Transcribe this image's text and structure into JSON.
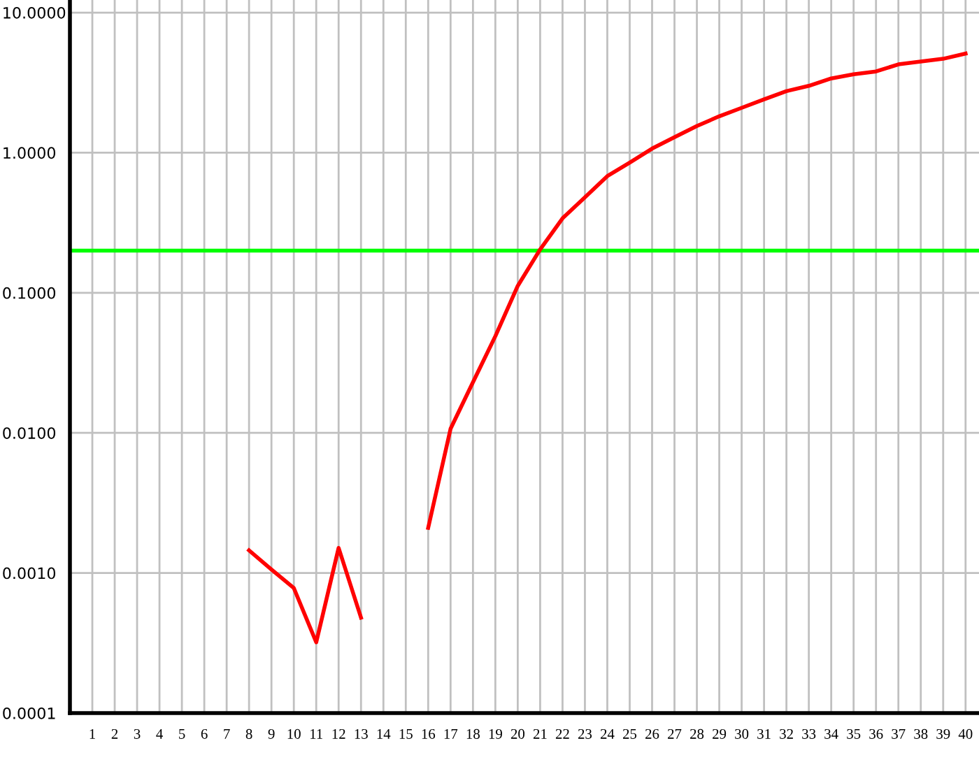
{
  "chart_data": {
    "type": "line",
    "log": "y",
    "x": [
      8,
      9,
      10,
      11,
      12,
      13,
      14,
      15,
      16,
      17,
      18,
      19,
      20,
      21,
      22,
      23,
      24,
      25,
      26,
      27,
      28,
      29,
      30,
      31,
      32,
      33,
      34,
      35,
      36,
      37,
      38,
      39,
      40
    ],
    "series": [
      {
        "color": "#ff0000",
        "values": [
          0.00145,
          0.00106,
          0.00078,
          0.00032,
          0.00151,
          0.00048,
          null,
          null,
          0.0021,
          0.0107,
          0.023,
          0.049,
          0.112,
          0.204,
          0.34,
          0.48,
          0.68,
          0.85,
          1.07,
          1.29,
          1.55,
          1.82,
          2.09,
          2.4,
          2.75,
          3.0,
          3.39,
          3.63,
          3.8,
          4.27,
          4.47,
          4.68,
          5.1
        ]
      }
    ],
    "xlim": [
      0,
      40.6
    ],
    "xticks": [
      1,
      2,
      3,
      4,
      5,
      6,
      7,
      8,
      9,
      10,
      11,
      12,
      13,
      14,
      15,
      16,
      17,
      18,
      19,
      20,
      21,
      22,
      23,
      24,
      25,
      26,
      27,
      28,
      29,
      30,
      31,
      32,
      33,
      34,
      35,
      36,
      37,
      38,
      39,
      40
    ],
    "ylim": [
      0.0001,
      12.3
    ],
    "yticks": [
      {
        "value": 0.0001,
        "label": "0.0001"
      },
      {
        "value": 0.001,
        "label": "0.0010"
      },
      {
        "value": 0.01,
        "label": "0.0100"
      },
      {
        "value": 0.1,
        "label": "0.1000"
      },
      {
        "value": 1,
        "label": "1.0000"
      },
      {
        "value": 10,
        "label": "10.0000"
      }
    ],
    "ref_lines": [
      {
        "axis": "y",
        "value": 0.2,
        "color": "#00ff00"
      }
    ],
    "grid": true,
    "marker": "none",
    "line_style": "solid"
  }
}
